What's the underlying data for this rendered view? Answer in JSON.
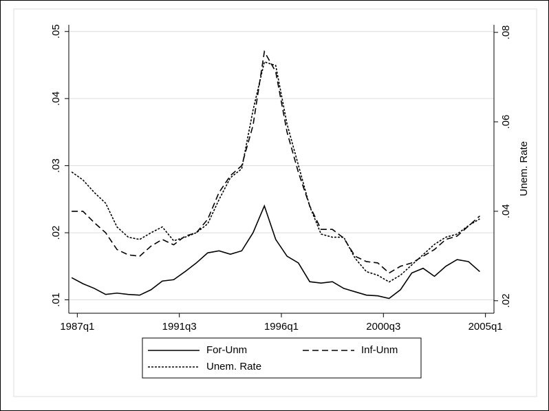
{
  "chart_data": {
    "type": "line",
    "x": [
      107,
      109,
      111,
      113,
      115,
      117,
      119,
      121,
      123,
      125,
      127,
      129,
      131,
      133,
      135,
      137,
      139,
      141,
      143,
      145,
      147,
      149,
      151,
      153,
      155,
      157,
      159,
      161,
      163,
      165,
      167,
      169,
      171,
      173,
      175,
      177,
      179
    ],
    "xlim": [
      106.5,
      181.5
    ],
    "xticks": [
      {
        "value": 108,
        "label": "1987q1"
      },
      {
        "value": 126,
        "label": "1991q3"
      },
      {
        "value": 144,
        "label": "1996q1"
      },
      {
        "value": 162,
        "label": "2000q3"
      },
      {
        "value": 180,
        "label": "2005q1"
      }
    ],
    "ylim": [
      0.008,
      0.051
    ],
    "yticks": [
      {
        "value": 0.01,
        "label": ".01"
      },
      {
        "value": 0.02,
        "label": ".02"
      },
      {
        "value": 0.03,
        "label": ".03"
      },
      {
        "value": 0.04,
        "label": ".04"
      },
      {
        "value": 0.05,
        "label": ".05"
      }
    ],
    "y2lim": [
      0.0172,
      0.0817
    ],
    "y2ticks": [
      {
        "value": 0.02,
        "label": ".02"
      },
      {
        "value": 0.04,
        "label": ".04"
      },
      {
        "value": 0.06,
        "label": ".06"
      },
      {
        "value": 0.08,
        "label": ".08"
      }
    ],
    "y2label": "Unem. Rate",
    "grid": true,
    "series": [
      {
        "name": "For-Unm",
        "color": "#000000",
        "style": "solid",
        "values": [
          0.0133,
          0.0124,
          0.0117,
          0.0108,
          0.011,
          0.0108,
          0.0107,
          0.0115,
          0.0128,
          0.013,
          0.0142,
          0.0155,
          0.017,
          0.0173,
          0.0168,
          0.0173,
          0.02,
          0.024,
          0.019,
          0.0165,
          0.0155,
          0.0127,
          0.0125,
          0.0127,
          0.0117,
          0.0112,
          0.0107,
          0.0106,
          0.0102,
          0.0115,
          0.014,
          0.0147,
          0.0135,
          0.015,
          0.016,
          0.0157,
          0.0142
        ]
      },
      {
        "name": "Inf-Unm",
        "color": "#000000",
        "style": "dashed",
        "values": [
          0.0232,
          0.0232,
          0.0215,
          0.02,
          0.0175,
          0.0167,
          0.0165,
          0.018,
          0.019,
          0.0182,
          0.0195,
          0.02,
          0.022,
          0.026,
          0.0285,
          0.03,
          0.036,
          0.047,
          0.044,
          0.035,
          0.029,
          0.024,
          0.0205,
          0.0205,
          0.0192,
          0.0165,
          0.0157,
          0.0155,
          0.014,
          0.015,
          0.0155,
          0.0165,
          0.0175,
          0.019,
          0.0195,
          0.021,
          0.0225
        ]
      },
      {
        "name": "Unem. Rate",
        "color": "#000000",
        "style": "dotted",
        "axis": "y2",
        "values": [
          0.0488,
          0.047,
          0.0442,
          0.0418,
          0.0365,
          0.0342,
          0.0337,
          0.0352,
          0.0365,
          0.0334,
          0.0342,
          0.0352,
          0.0372,
          0.0426,
          0.0475,
          0.0495,
          0.0626,
          0.0734,
          0.0726,
          0.0595,
          0.0503,
          0.0411,
          0.0349,
          0.0342,
          0.0342,
          0.0295,
          0.0265,
          0.0257,
          0.0242,
          0.0257,
          0.028,
          0.0303,
          0.0326,
          0.0342,
          0.0349,
          0.0368,
          0.0383
        ]
      }
    ],
    "legend": "bottom"
  }
}
